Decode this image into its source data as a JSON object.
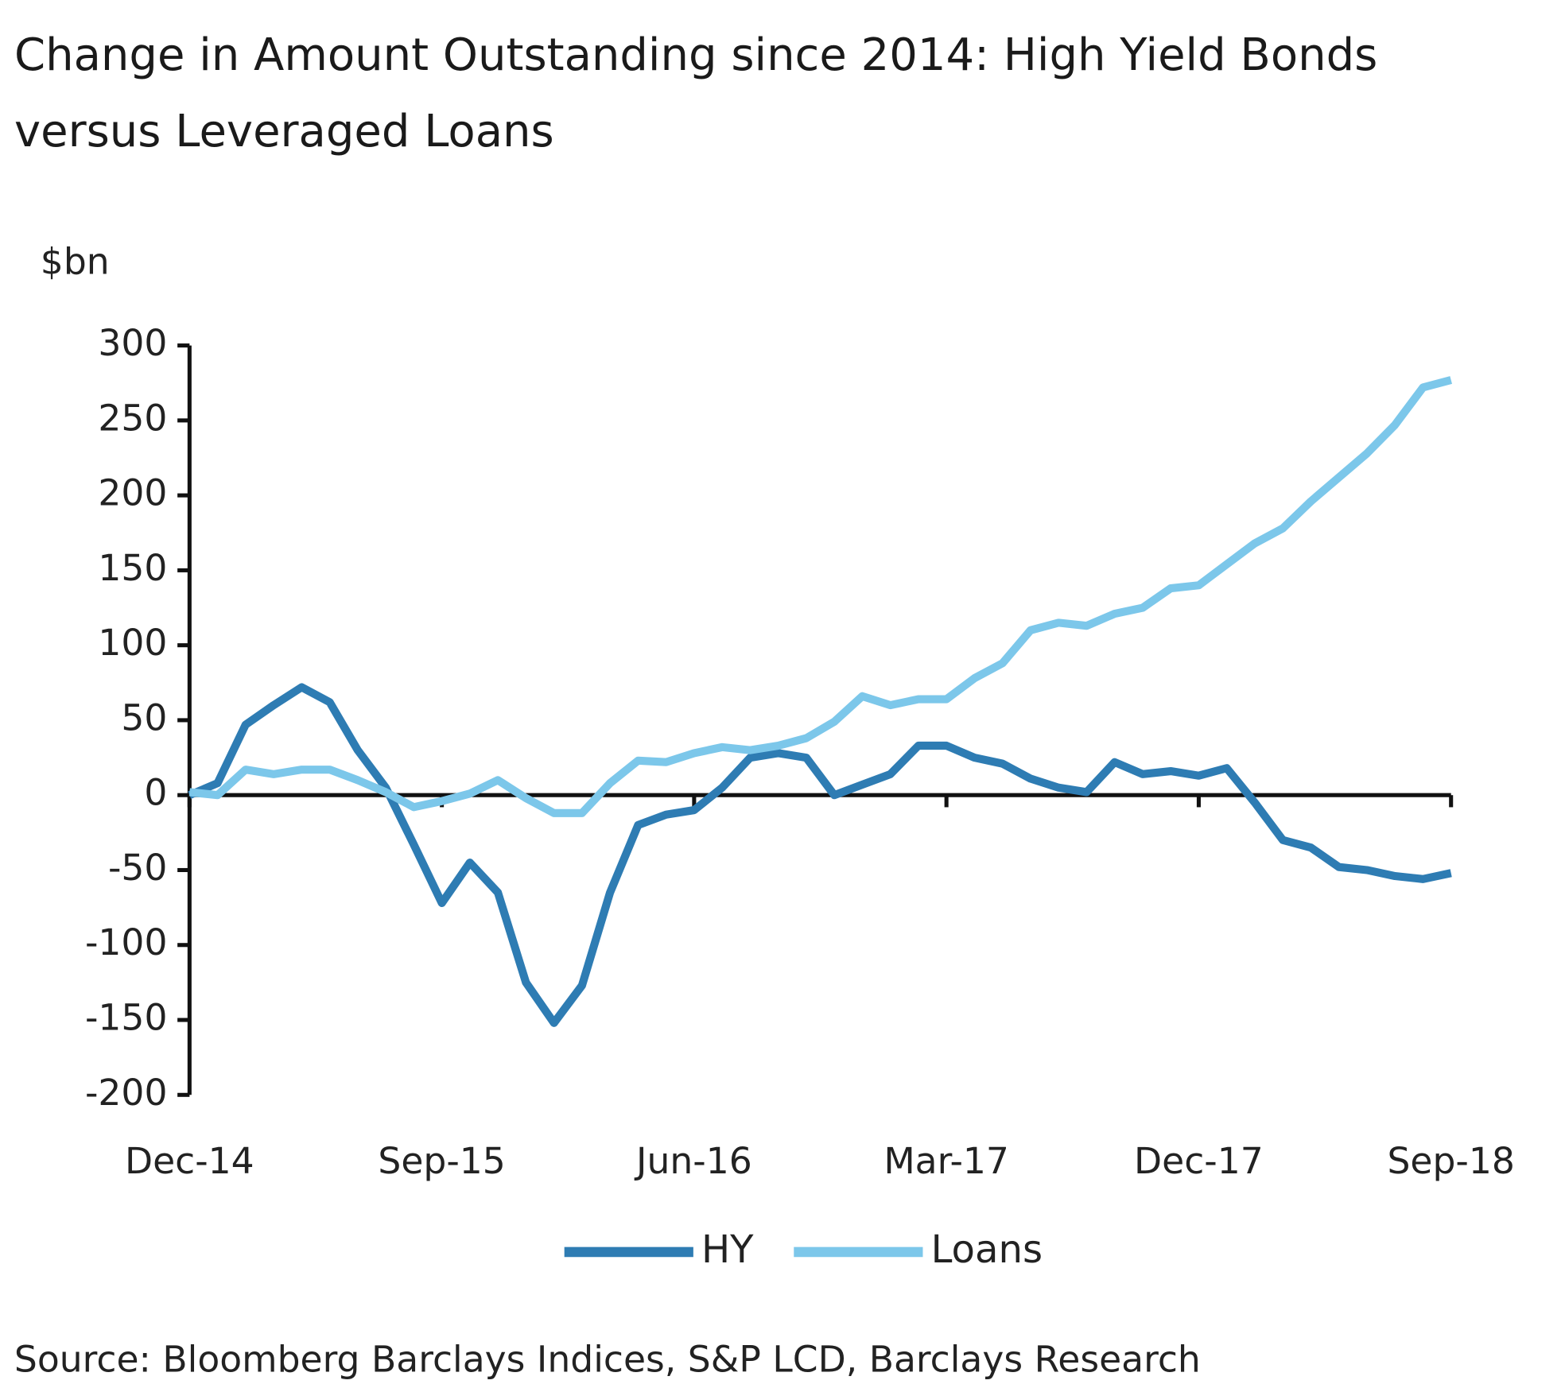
{
  "chart_data": {
    "type": "line",
    "title": "Change in Amount Outstanding since 2014: High Yield Bonds versus Leveraged Loans",
    "ylabel": "$bn",
    "source": "Source: Bloomberg Barclays Indices, S&P LCD, Barclays Research",
    "categories": [
      "Dec-14",
      null,
      null,
      null,
      null,
      null,
      null,
      null,
      null,
      "Sep-15",
      null,
      null,
      null,
      null,
      null,
      null,
      null,
      null,
      "Jun-16",
      null,
      null,
      null,
      null,
      null,
      null,
      null,
      null,
      "Mar-17",
      null,
      null,
      null,
      null,
      null,
      null,
      null,
      null,
      "Dec-17",
      null,
      null,
      null,
      null,
      null,
      null,
      null,
      null,
      "Sep-18"
    ],
    "series": [
      {
        "name": "HY",
        "color": "#2e7cb3",
        "values": [
          0,
          8,
          47,
          60,
          72,
          62,
          30,
          5,
          -33,
          -72,
          -45,
          -65,
          -125,
          -152,
          -127,
          -65,
          -20,
          -13,
          -10,
          5,
          25,
          28,
          25,
          0,
          7,
          14,
          33,
          33,
          25,
          21,
          11,
          5,
          2,
          22,
          14,
          16,
          13,
          18,
          -5,
          -30,
          -35,
          -48,
          -50,
          -54,
          -56,
          -52
        ]
      },
      {
        "name": "Loans",
        "color": "#7cc7ea",
        "values": [
          2,
          0,
          17,
          14,
          17,
          17,
          10,
          2,
          -8,
          -4,
          1,
          10,
          -2,
          -12,
          -12,
          8,
          23,
          22,
          28,
          32,
          30,
          33,
          38,
          49,
          66,
          60,
          64,
          64,
          78,
          88,
          110,
          115,
          113,
          121,
          125,
          138,
          140,
          154,
          168,
          178,
          196,
          212,
          228,
          247,
          272,
          277
        ]
      }
    ],
    "ylim": [
      -200,
      300
    ],
    "yticks": [
      -200,
      -150,
      -100,
      -50,
      0,
      50,
      100,
      150,
      200,
      250,
      300
    ],
    "legend": "bottom"
  }
}
